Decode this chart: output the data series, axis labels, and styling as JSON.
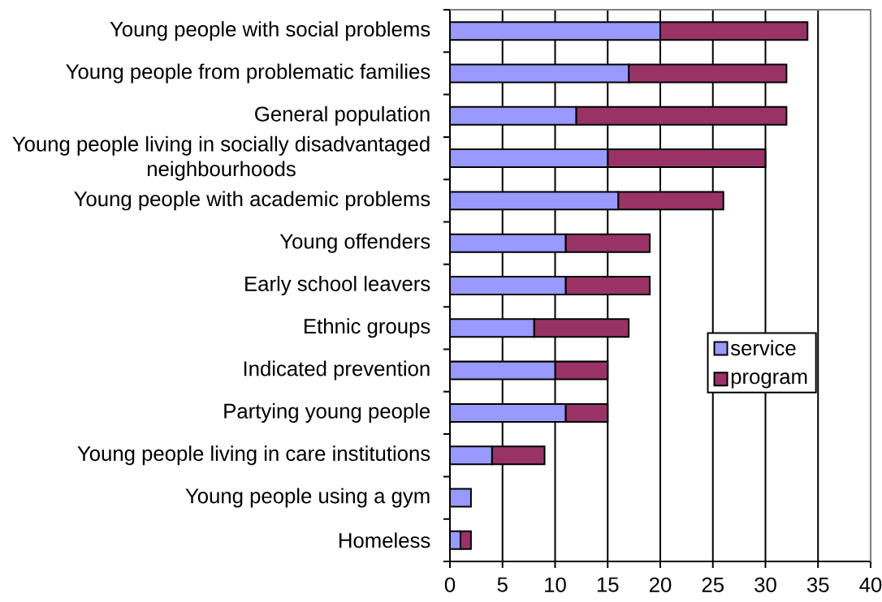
{
  "chart_data": {
    "type": "bar",
    "orientation": "horizontal",
    "stacked": true,
    "categories": [
      "Young people with social problems",
      "Young people from problematic families",
      "General population",
      "Young people living in socially disadvantaged neighbourhoods",
      "Young people with academic problems",
      "Young offenders",
      "Early school leavers",
      "Ethnic groups",
      "Indicated prevention",
      "Partying young people",
      "Young people living in care institutions",
      "Young people using a gym",
      "Homeless"
    ],
    "series": [
      {
        "name": "service",
        "color": "#9999ff",
        "values": [
          20,
          17,
          12,
          15,
          16,
          11,
          11,
          8,
          10,
          11,
          4,
          2,
          1
        ]
      },
      {
        "name": "program",
        "color": "#993366",
        "values": [
          14,
          15,
          20,
          15,
          10,
          8,
          8,
          9,
          5,
          4,
          5,
          null,
          1
        ]
      }
    ],
    "xlim": [
      0,
      40
    ],
    "xticks": [
      0,
      5,
      10,
      15,
      20,
      25,
      30,
      35,
      40
    ],
    "grid": "x",
    "legend": "right"
  }
}
